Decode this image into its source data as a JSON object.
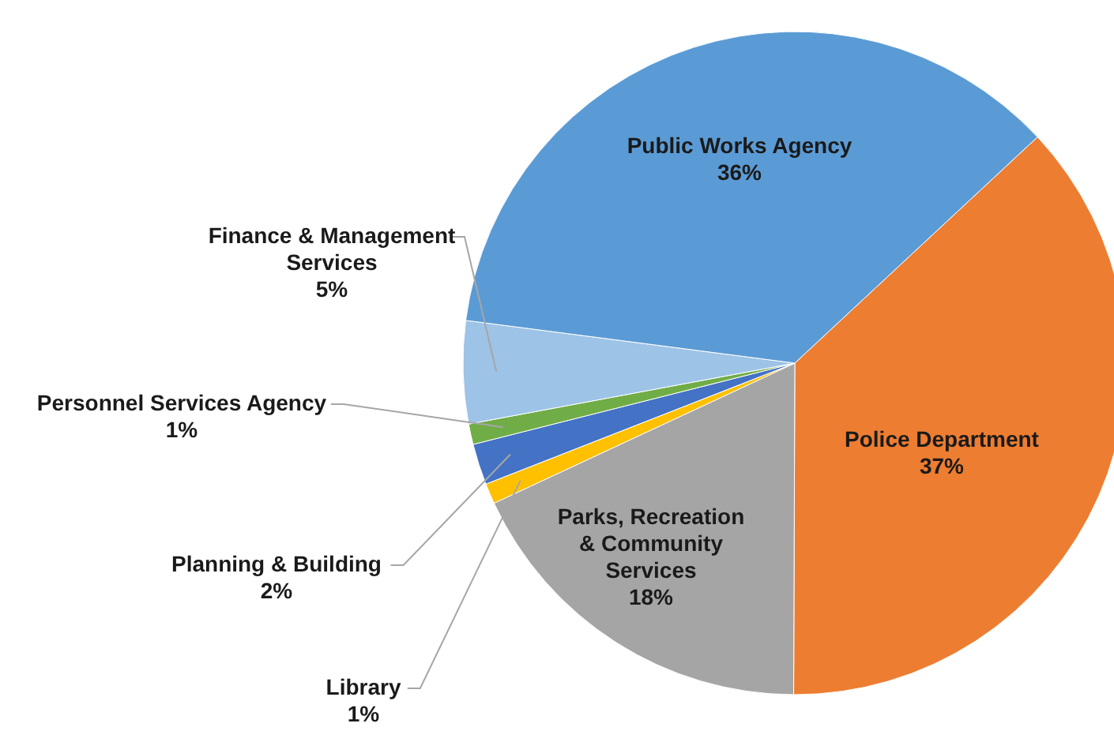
{
  "chart_data": {
    "type": "pie",
    "categories": [
      "Police Department",
      "Parks, Recreation & Community Services",
      "Library",
      "Planning & Building",
      "Personnel Services Agency",
      "Finance & Management Services",
      "Public Works Agency"
    ],
    "values": [
      37,
      18,
      1,
      2,
      1,
      5,
      36
    ],
    "colors": [
      "#ed7d31",
      "#a5a5a5",
      "#ffc000",
      "#4472c4",
      "#70ad47",
      "#9dc3e6",
      "#5b9bd5"
    ],
    "value_labels": [
      "37%",
      "18%",
      "1%",
      "2%",
      "1%",
      "5%",
      "36%"
    ]
  }
}
